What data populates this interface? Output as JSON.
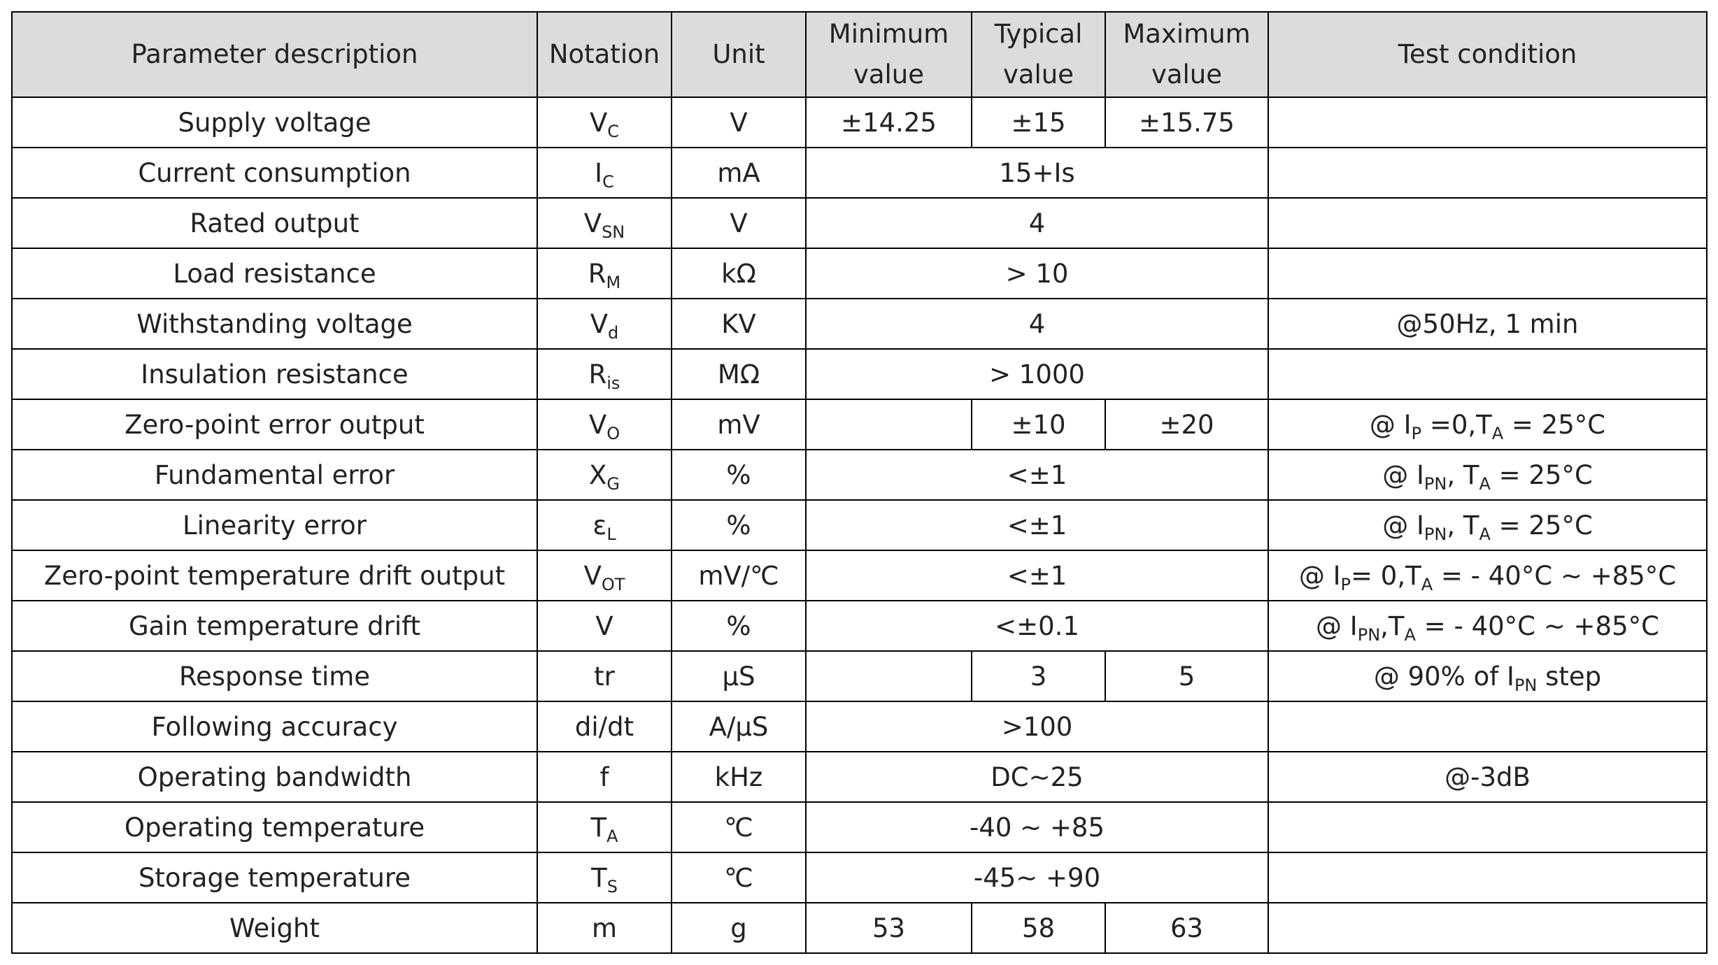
{
  "table": {
    "header": [
      "Parameter description",
      "Notation",
      "Unit",
      "Minimum value",
      "Typical value",
      "Maximum value",
      "Test condition"
    ],
    "rows": [
      {
        "parameter": "Supply voltage",
        "notation": [
          "V",
          "C"
        ],
        "unit": "V",
        "values": [
          "±14.25",
          "±15",
          "±15.75"
        ],
        "condition": null
      },
      {
        "parameter": "Current consumption",
        "notation": [
          "I",
          "C"
        ],
        "unit": "mA",
        "values": [
          "15+Is"
        ],
        "condition": null
      },
      {
        "parameter": "Rated output",
        "notation": [
          "V",
          "SN"
        ],
        "unit": "V",
        "values": [
          "4"
        ],
        "condition": null
      },
      {
        "parameter": "Load resistance",
        "notation": [
          "R",
          "M"
        ],
        "unit": "kΩ",
        "values": [
          "> 10"
        ],
        "condition": null
      },
      {
        "parameter": "Withstanding voltage",
        "notation": [
          "V",
          "d"
        ],
        "unit": "KV",
        "values": [
          "4"
        ],
        "condition": [
          "@50Hz, 1 min"
        ]
      },
      {
        "parameter": "Insulation resistance",
        "notation": [
          "R",
          "is"
        ],
        "unit": "MΩ",
        "values": [
          "> 1000"
        ],
        "condition": null
      },
      {
        "parameter": "Zero-point error output",
        "notation": [
          "V",
          "O"
        ],
        "unit": "mV",
        "values": [
          null,
          "±10",
          "±20"
        ],
        "condition": [
          "@ I",
          "P",
          " =0,T",
          "A",
          " = 25°C"
        ]
      },
      {
        "parameter": "Fundamental error",
        "notation": [
          "X",
          "G"
        ],
        "unit": "%",
        "values": [
          "<±1"
        ],
        "condition": [
          "@ I",
          "PN",
          ", T",
          "A",
          " = 25°C"
        ]
      },
      {
        "parameter": "Linearity error",
        "notation": [
          "ε",
          "L"
        ],
        "unit": "%",
        "values": [
          "<±1"
        ],
        "condition": [
          "@ I",
          "PN",
          ", T",
          "A",
          " = 25°C"
        ]
      },
      {
        "parameter": "Zero-point temperature drift output",
        "notation": [
          "V",
          "OT"
        ],
        "unit": "mV/℃",
        "values": [
          "<±1"
        ],
        "condition": [
          "@ I",
          "P",
          "= 0,T",
          "A",
          " = - 40°C ~ +85°C"
        ]
      },
      {
        "parameter": "Gain temperature drift",
        "notation": [
          "V"
        ],
        "unit": "%",
        "values": [
          "<±0.1"
        ],
        "condition": [
          "@ I",
          "PN",
          ",T",
          "A",
          " = - 40°C ~ +85°C"
        ]
      },
      {
        "parameter": "Response time",
        "notation": [
          "tr"
        ],
        "unit": "μS",
        "values": [
          null,
          "3",
          "5"
        ],
        "condition": [
          "@ 90% of I",
          "PN",
          " step"
        ]
      },
      {
        "parameter": "Following accuracy",
        "notation": [
          "di/dt"
        ],
        "unit": "A/μS",
        "values": [
          ">100"
        ],
        "condition": null
      },
      {
        "parameter": "Operating bandwidth",
        "notation": [
          "f"
        ],
        "unit": "kHz",
        "values": [
          "DC~25"
        ],
        "condition": [
          "@-3dB"
        ]
      },
      {
        "parameter": "Operating temperature",
        "notation": [
          "T",
          "A"
        ],
        "unit": "℃",
        "values": [
          "-40 ~ +85"
        ],
        "condition": null
      },
      {
        "parameter": "Storage temperature",
        "notation": [
          "T",
          "S"
        ],
        "unit": "℃",
        "values": [
          "-45~ +90"
        ],
        "condition": null
      },
      {
        "parameter": "Weight",
        "notation": [
          "m"
        ],
        "unit": "g",
        "values": [
          "53",
          "58",
          "63"
        ],
        "condition": null
      }
    ]
  }
}
